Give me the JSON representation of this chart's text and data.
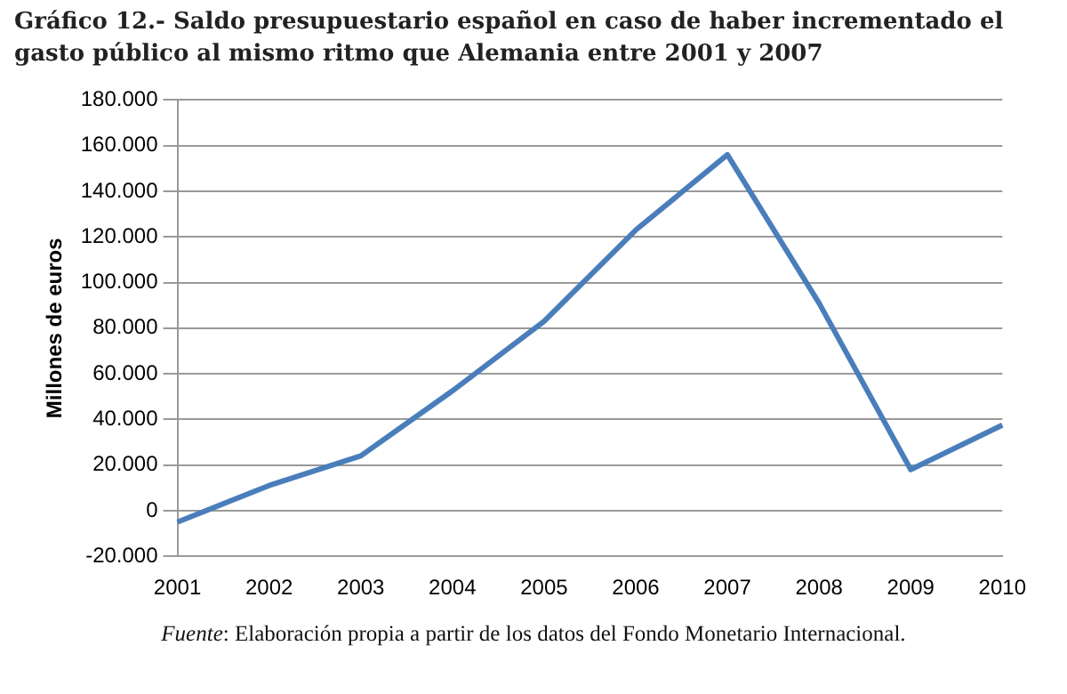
{
  "chart_data": {
    "type": "line",
    "title": "Gráfico 12.- Saldo presupuestario español en caso de haber incrementado el gasto público al mismo ritmo que Alemania entre 2001 y 2007",
    "ylabel": "Millones de euros",
    "categories": [
      "2001",
      "2002",
      "2003",
      "2004",
      "2005",
      "2006",
      "2007",
      "2008",
      "2009",
      "2010"
    ],
    "series": [
      {
        "color": "#4a7ebb",
        "values": [
          -5000,
          11000,
          24000,
          52500,
          83000,
          123000,
          156000,
          91000,
          18000,
          37500
        ]
      }
    ],
    "ylim": [
      -20000,
      180000
    ],
    "yticks": [
      {
        "value": -20000,
        "label": "-20.000"
      },
      {
        "value": 0,
        "label": "0"
      },
      {
        "value": 20000,
        "label": "20.000"
      },
      {
        "value": 40000,
        "label": "40.000"
      },
      {
        "value": 60000,
        "label": "60.000"
      },
      {
        "value": 80000,
        "label": "80.000"
      },
      {
        "value": 100000,
        "label": "100.000"
      },
      {
        "value": 120000,
        "label": "120.000"
      },
      {
        "value": 140000,
        "label": "140.000"
      },
      {
        "value": 160000,
        "label": "160.000"
      },
      {
        "value": 180000,
        "label": "180.000"
      }
    ],
    "grid": "y",
    "legend": false,
    "marker": "none",
    "line_style": "solid",
    "annotations": [
      "Fuente: Elaboración propia a partir de los datos del Fondo Monetario Internacional."
    ]
  }
}
